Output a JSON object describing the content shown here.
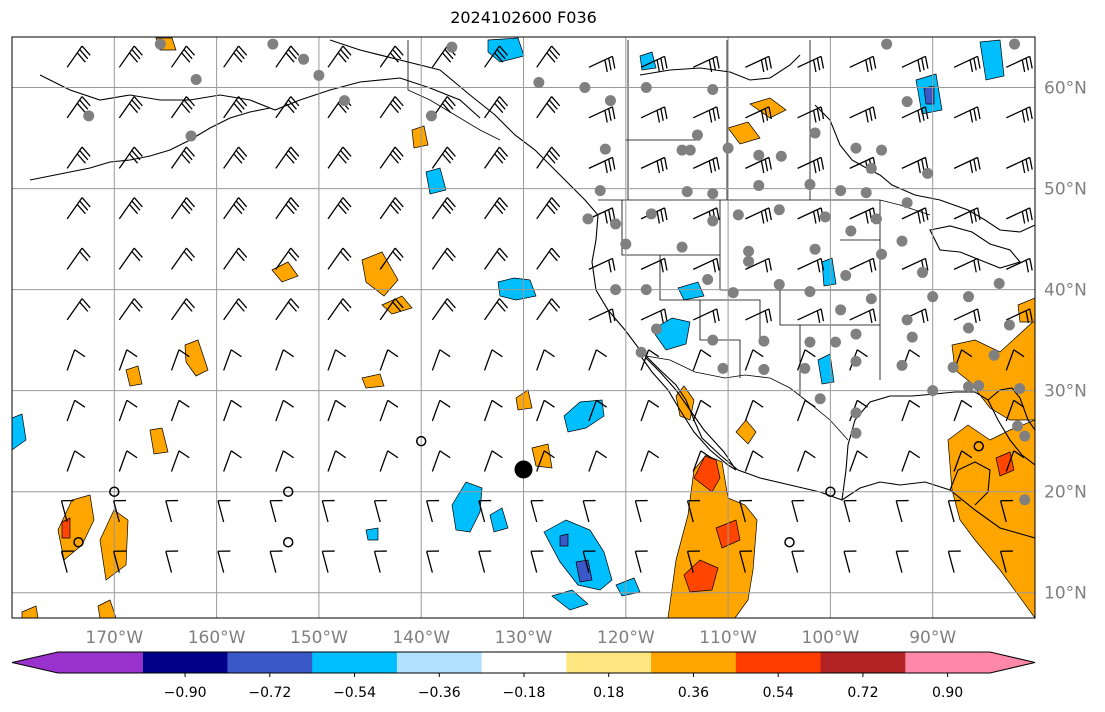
{
  "title": "2024102600 F036",
  "map": {
    "projection": "plate-carree",
    "lon_range": [
      -180,
      -80
    ],
    "lat_range": [
      7.5,
      65
    ],
    "lon_gridlines": [
      -170,
      -160,
      -150,
      -140,
      -130,
      -120,
      -110,
      -100,
      -90
    ],
    "lat_gridlines": [
      10,
      20,
      30,
      40,
      50,
      60
    ],
    "lon_labels": [
      "170°W",
      "160°W",
      "150°W",
      "140°W",
      "130°W",
      "120°W",
      "110°W",
      "100°W",
      "90°W"
    ],
    "lat_labels": [
      "10°N",
      "20°N",
      "30°N",
      "40°N",
      "50°N",
      "60°N"
    ],
    "label_color": "#808080",
    "gridline_color": "#9a9a9a",
    "highlighted_point": {
      "lon": -130,
      "lat": 22.2
    },
    "calm_circles": [
      {
        "lon": -170,
        "lat": 20
      },
      {
        "lon": -173.5,
        "lat": 15
      },
      {
        "lon": -153,
        "lat": 20
      },
      {
        "lon": -153,
        "lat": 15
      },
      {
        "lon": -140,
        "lat": 25
      },
      {
        "lon": -100,
        "lat": 20
      },
      {
        "lon": -104,
        "lat": 15
      },
      {
        "lon": -85.5,
        "lat": 24.5
      }
    ],
    "station_dots": [
      {
        "lon": -165.5,
        "lat": 64.3
      },
      {
        "lon": -154.5,
        "lat": 64.3
      },
      {
        "lon": -137,
        "lat": 64
      },
      {
        "lon": -94.5,
        "lat": 64.3
      },
      {
        "lon": -82,
        "lat": 64.3
      },
      {
        "lon": -151.5,
        "lat": 62.8
      },
      {
        "lon": -162,
        "lat": 60.8
      },
      {
        "lon": -150,
        "lat": 61.2
      },
      {
        "lon": -128.5,
        "lat": 60.5
      },
      {
        "lon": -124,
        "lat": 60
      },
      {
        "lon": -118,
        "lat": 60
      },
      {
        "lon": -111.5,
        "lat": 59.8
      },
      {
        "lon": -92.5,
        "lat": 58.6
      },
      {
        "lon": -147.5,
        "lat": 58.7
      },
      {
        "lon": -172.5,
        "lat": 57.2
      },
      {
        "lon": -139,
        "lat": 57.2
      },
      {
        "lon": -162.5,
        "lat": 55.2
      },
      {
        "lon": -121.5,
        "lat": 58.7
      },
      {
        "lon": -101.5,
        "lat": 55.5
      },
      {
        "lon": -113,
        "lat": 55.3
      },
      {
        "lon": -110,
        "lat": 54
      },
      {
        "lon": -114.5,
        "lat": 53.8
      },
      {
        "lon": -113.7,
        "lat": 53.8
      },
      {
        "lon": -122,
        "lat": 53.9
      },
      {
        "lon": -107,
        "lat": 53.3
      },
      {
        "lon": -104.8,
        "lat": 53.2
      },
      {
        "lon": -97.5,
        "lat": 54
      },
      {
        "lon": -95,
        "lat": 53.8
      },
      {
        "lon": -96,
        "lat": 52
      },
      {
        "lon": -90.5,
        "lat": 51.5
      },
      {
        "lon": -122.5,
        "lat": 49.8
      },
      {
        "lon": -114,
        "lat": 49.7
      },
      {
        "lon": -111.5,
        "lat": 49.5
      },
      {
        "lon": -107,
        "lat": 50.3
      },
      {
        "lon": -102,
        "lat": 50.4
      },
      {
        "lon": -99,
        "lat": 49.8
      },
      {
        "lon": -96.5,
        "lat": 49.6
      },
      {
        "lon": -92.5,
        "lat": 48.6
      },
      {
        "lon": -109,
        "lat": 47.4
      },
      {
        "lon": -105,
        "lat": 47.9
      },
      {
        "lon": -100.5,
        "lat": 47.2
      },
      {
        "lon": -123.7,
        "lat": 47
      },
      {
        "lon": -117.5,
        "lat": 47.5
      },
      {
        "lon": -111.5,
        "lat": 46.8
      },
      {
        "lon": -95.5,
        "lat": 47
      },
      {
        "lon": -121,
        "lat": 46.5
      },
      {
        "lon": -98,
        "lat": 45.8
      },
      {
        "lon": -93,
        "lat": 44.8
      },
      {
        "lon": -120,
        "lat": 44.5
      },
      {
        "lon": -114.5,
        "lat": 44.2
      },
      {
        "lon": -108,
        "lat": 43.8
      },
      {
        "lon": -101.5,
        "lat": 44
      },
      {
        "lon": -95,
        "lat": 43.5
      },
      {
        "lon": -108,
        "lat": 42.8
      },
      {
        "lon": -98.5,
        "lat": 41.4
      },
      {
        "lon": -91,
        "lat": 41.7
      },
      {
        "lon": -112,
        "lat": 41
      },
      {
        "lon": -105,
        "lat": 40.5
      },
      {
        "lon": -121,
        "lat": 40
      },
      {
        "lon": -118,
        "lat": 40
      },
      {
        "lon": -109.5,
        "lat": 39.7
      },
      {
        "lon": -102,
        "lat": 39.8
      },
      {
        "lon": -96,
        "lat": 39.1
      },
      {
        "lon": -90,
        "lat": 39.3
      },
      {
        "lon": -83.5,
        "lat": 40.6
      },
      {
        "lon": -86.5,
        "lat": 39.3
      },
      {
        "lon": -99,
        "lat": 38
      },
      {
        "lon": -92.5,
        "lat": 37
      },
      {
        "lon": -117,
        "lat": 36.1
      },
      {
        "lon": -97.5,
        "lat": 35.6
      },
      {
        "lon": -92,
        "lat": 35.3
      },
      {
        "lon": -86.5,
        "lat": 36.2
      },
      {
        "lon": -82.5,
        "lat": 36.5
      },
      {
        "lon": -111.5,
        "lat": 35
      },
      {
        "lon": -106.5,
        "lat": 34.9
      },
      {
        "lon": -102,
        "lat": 34.8
      },
      {
        "lon": -99.5,
        "lat": 34.8
      },
      {
        "lon": -118.5,
        "lat": 33.8
      },
      {
        "lon": -110.5,
        "lat": 32.2
      },
      {
        "lon": -106.5,
        "lat": 32.1
      },
      {
        "lon": -102.5,
        "lat": 32.2
      },
      {
        "lon": -97.5,
        "lat": 32.9
      },
      {
        "lon": -93,
        "lat": 32.5
      },
      {
        "lon": -88,
        "lat": 32.3
      },
      {
        "lon": -84,
        "lat": 33.5
      },
      {
        "lon": -86.5,
        "lat": 30.4
      },
      {
        "lon": -90,
        "lat": 30
      },
      {
        "lon": -85.5,
        "lat": 30.5
      },
      {
        "lon": -81.5,
        "lat": 30.2
      },
      {
        "lon": -101,
        "lat": 29.2
      },
      {
        "lon": -97.5,
        "lat": 27.8
      },
      {
        "lon": -97.5,
        "lat": 25.8
      },
      {
        "lon": -81.7,
        "lat": 26.5
      },
      {
        "lon": -81,
        "lat": 25.5
      },
      {
        "lon": -81,
        "lat": 19.2
      }
    ]
  },
  "colorbar": {
    "tick_labels": [
      "−0.90",
      "−0.72",
      "−0.54",
      "−0.36",
      "−0.18",
      "0.18",
      "0.36",
      "0.54",
      "0.72",
      "0.90"
    ],
    "under_color": "#9932cc",
    "over_color": "#ff88aa",
    "colors": [
      "#00008b",
      "#3a58c8",
      "#00bfff",
      "#b0e2ff",
      "#ffffff",
      "#ffe680",
      "#ffa500",
      "#ff3c00",
      "#b22222"
    ]
  },
  "legend_colors": {
    "orange": "#ffa500",
    "red_orange": "#ff4500",
    "sky": "#00bfff",
    "blue": "#3a58c8"
  }
}
